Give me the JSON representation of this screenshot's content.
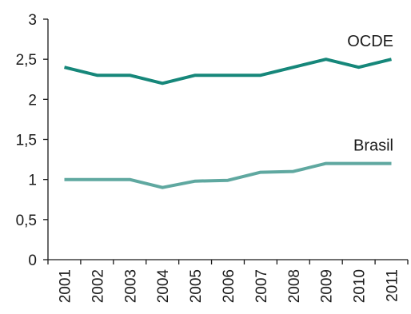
{
  "chart_data": {
    "type": "line",
    "title": "",
    "xlabel": "",
    "ylabel": "",
    "categories": [
      "2001",
      "2002",
      "2003",
      "2004",
      "2005",
      "2006",
      "2007",
      "2008",
      "2009",
      "2010",
      "2011"
    ],
    "ylim": [
      0,
      3
    ],
    "yticks": [
      "0",
      "0,5",
      "1",
      "1,5",
      "2",
      "2,5",
      "3"
    ],
    "ytick_values": [
      0,
      0.5,
      1,
      1.5,
      2,
      2.5,
      3
    ],
    "grid": false,
    "legend": "none",
    "series": [
      {
        "name": "OCDE",
        "color": "#16877a",
        "values": [
          2.4,
          2.3,
          2.3,
          2.2,
          2.3,
          2.3,
          2.3,
          2.4,
          2.5,
          2.4,
          2.5
        ]
      },
      {
        "name": "Brasil",
        "color": "#5fa8a0",
        "values": [
          1.0,
          1.0,
          1.0,
          0.9,
          0.98,
          0.99,
          1.09,
          1.1,
          1.2,
          1.2,
          1.2
        ]
      }
    ]
  }
}
